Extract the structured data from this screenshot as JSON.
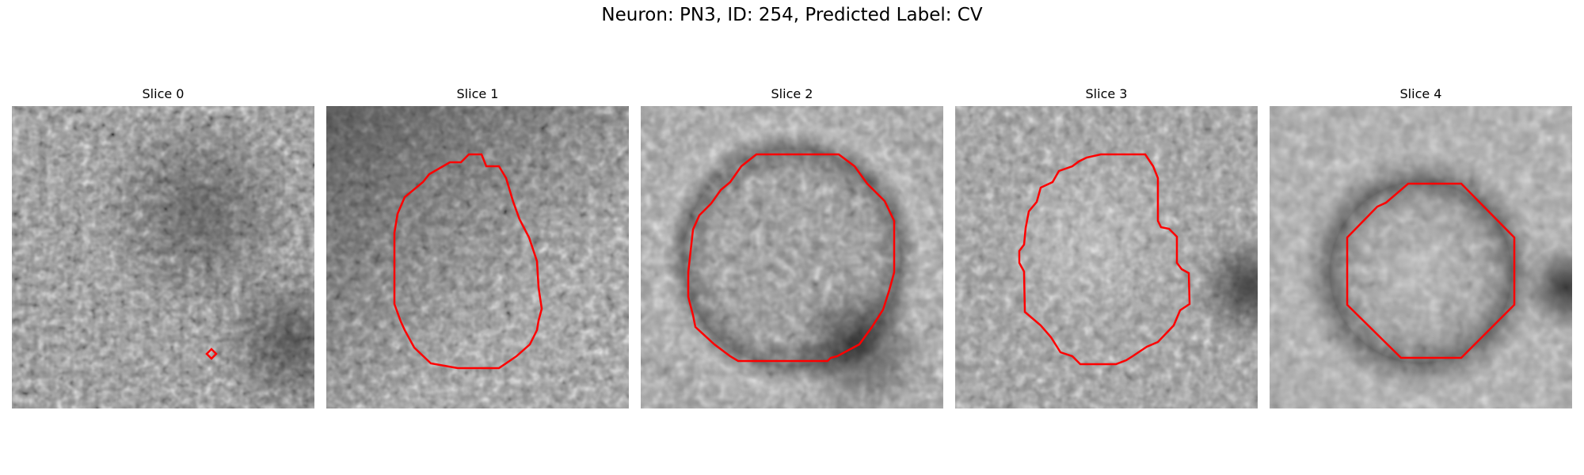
{
  "figure": {
    "title": "Neuron: PN3, ID: 254, Predicted Label: CV"
  },
  "colors": {
    "contour": "#ff0000",
    "colormap": "grayscale"
  },
  "panels": [
    {
      "title": "Slice 0"
    },
    {
      "title": "Slice 1"
    },
    {
      "title": "Slice 2"
    },
    {
      "title": "Slice 3"
    },
    {
      "title": "Slice 4"
    }
  ]
}
